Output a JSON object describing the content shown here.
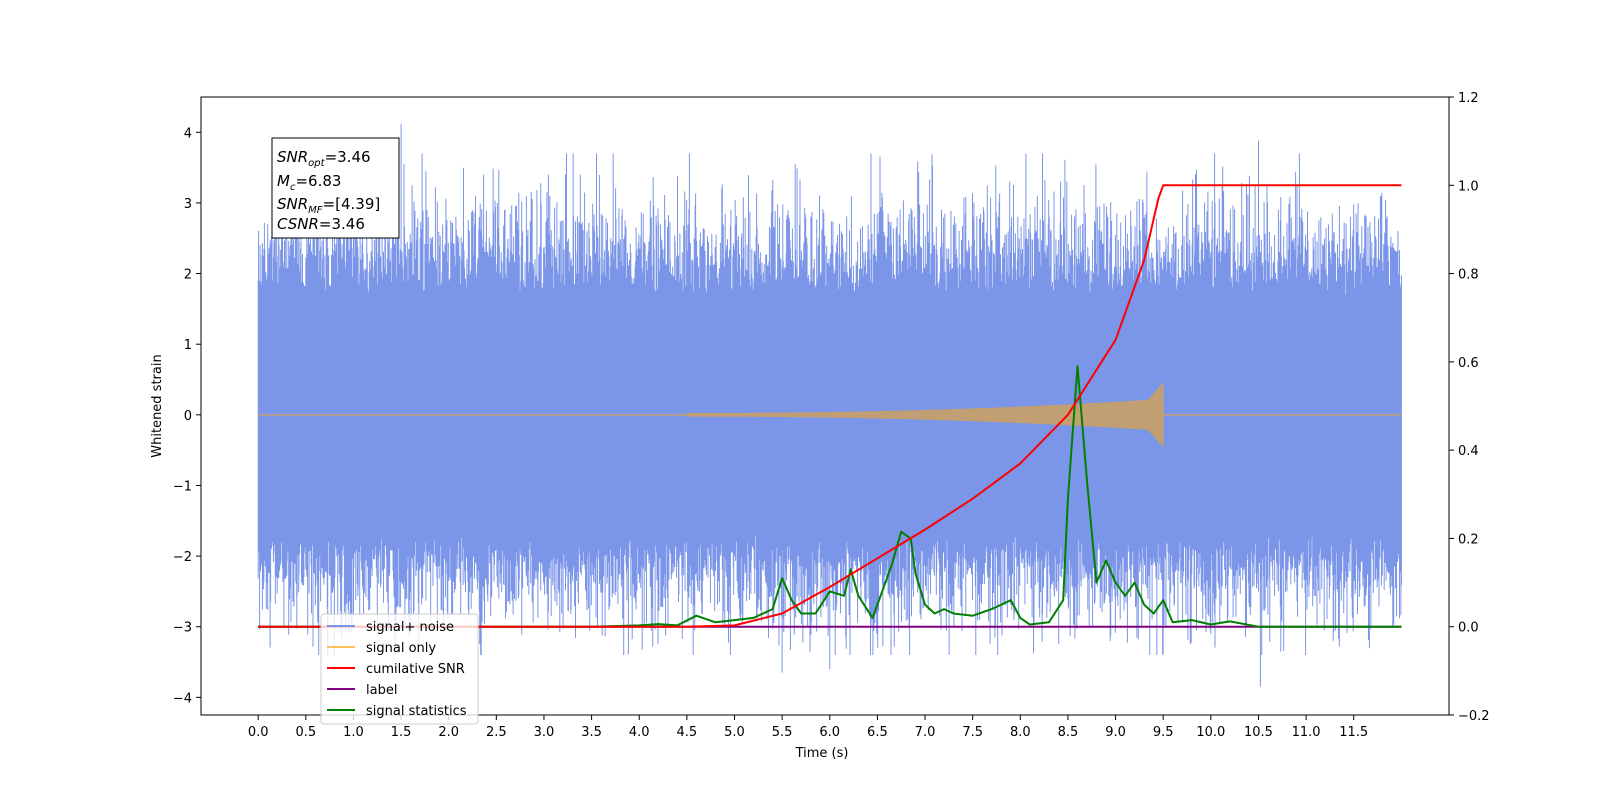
{
  "chart_data": {
    "type": "line",
    "xlabel": "Time (s)",
    "ylabel": "Whitened strain",
    "xlim": [
      -0.6,
      12.5
    ],
    "ylim": [
      -4.25,
      4.5
    ],
    "y2lim": [
      -0.2,
      1.2
    ],
    "x_ticks": [
      "0.0",
      "0.5",
      "1.0",
      "1.5",
      "2.0",
      "2.5",
      "3.0",
      "3.5",
      "4.0",
      "4.5",
      "5.0",
      "5.5",
      "6.0",
      "6.5",
      "7.0",
      "7.5",
      "8.0",
      "8.5",
      "9.0",
      "9.5",
      "10.0",
      "10.5",
      "11.0",
      "11.5"
    ],
    "y_ticks": [
      "4",
      "3",
      "2",
      "1",
      "0",
      "−1",
      "−2",
      "−3",
      "−4"
    ],
    "y2_ticks": [
      "1.2",
      "1.0",
      "0.8",
      "0.6",
      "0.4",
      "0.2",
      "0.0",
      "−0.2"
    ],
    "grid": false,
    "legend_position": "lower-left",
    "info_box": {
      "snr_opt": "=3.46",
      "mc": "=6.83",
      "snr_mf": "=[4.39]",
      "csnr": "=3.46"
    },
    "series": [
      {
        "name": "signal+ noise",
        "color": "#7b96e8",
        "axis": "left",
        "x_range": [
          0.0,
          12.0
        ],
        "description": "whitened noisy strain, roughly ±2.5 with spikes to ±4",
        "peaks": [
          [
            1.5,
            4.12
          ],
          [
            10.5,
            3.88
          ],
          [
            10.52,
            -3.85
          ],
          [
            6.0,
            -3.6
          ],
          [
            5.5,
            -3.65
          ]
        ]
      },
      {
        "name": "signal only",
        "color": "#ffc15a",
        "axis": "left",
        "chirp_start": 4.5,
        "chirp_end": 9.5,
        "peak_amplitude": 0.45
      },
      {
        "name": "cumilative SNR",
        "color": "#ff0000",
        "axis": "right",
        "x": [
          0.0,
          4.5,
          5.0,
          5.5,
          6.0,
          6.5,
          7.0,
          7.5,
          8.0,
          8.5,
          9.0,
          9.3,
          9.45,
          9.5,
          12.0
        ],
        "y": [
          0.0,
          0.0,
          0.003,
          0.03,
          0.09,
          0.155,
          0.22,
          0.29,
          0.37,
          0.48,
          0.65,
          0.83,
          0.97,
          1.0,
          1.0
        ]
      },
      {
        "name": "label",
        "color": "#800080",
        "axis": "right",
        "x": [
          0.0,
          12.0
        ],
        "y": [
          0.0,
          0.0
        ]
      },
      {
        "name": "signal statistics",
        "color": "#008000",
        "axis": "right",
        "x": [
          0.0,
          3.5,
          4.0,
          4.2,
          4.4,
          4.6,
          4.8,
          5.0,
          5.2,
          5.4,
          5.5,
          5.6,
          5.7,
          5.85,
          6.0,
          6.15,
          6.22,
          6.3,
          6.45,
          6.55,
          6.65,
          6.75,
          6.85,
          6.9,
          7.0,
          7.1,
          7.2,
          7.3,
          7.5,
          7.7,
          7.9,
          8.0,
          8.1,
          8.3,
          8.45,
          8.5,
          8.6,
          8.7,
          8.8,
          8.9,
          9.0,
          9.1,
          9.2,
          9.3,
          9.4,
          9.5,
          9.6,
          9.8,
          10.0,
          10.2,
          10.5,
          11.0,
          12.0
        ],
        "y": [
          0.0,
          0.0,
          0.003,
          0.006,
          0.003,
          0.025,
          0.01,
          0.015,
          0.02,
          0.04,
          0.11,
          0.06,
          0.03,
          0.03,
          0.08,
          0.07,
          0.13,
          0.07,
          0.02,
          0.08,
          0.14,
          0.215,
          0.2,
          0.12,
          0.05,
          0.03,
          0.04,
          0.03,
          0.025,
          0.04,
          0.06,
          0.02,
          0.005,
          0.01,
          0.06,
          0.29,
          0.59,
          0.33,
          0.1,
          0.15,
          0.1,
          0.07,
          0.1,
          0.05,
          0.03,
          0.06,
          0.01,
          0.015,
          0.005,
          0.012,
          0.0,
          0.0,
          0.0
        ]
      }
    ]
  }
}
